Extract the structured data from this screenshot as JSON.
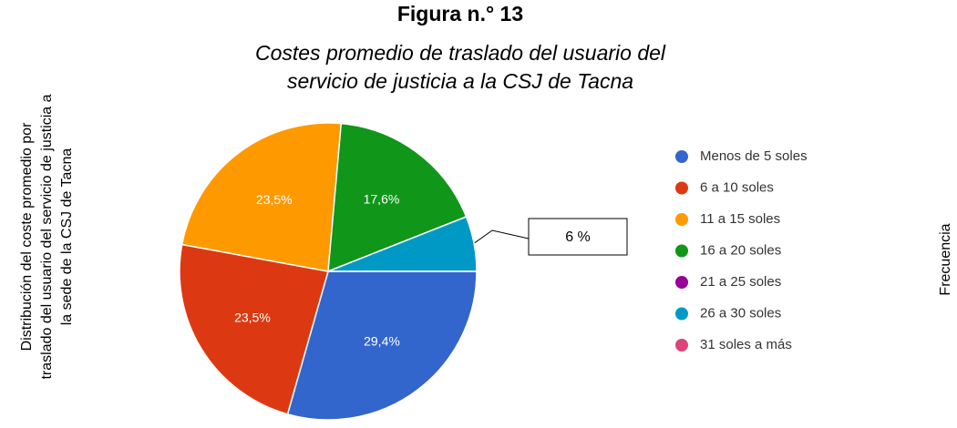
{
  "chart_data": {
    "type": "pie",
    "title": "Figura n.° 13",
    "subtitle": [
      "Costes promedio de traslado del usuario del",
      "servicio de justicia a la CSJ de Tacna"
    ],
    "y_label": [
      "Distribución del coste promedio por",
      "traslado del usuario del servicio de justicia a",
      "la sede de la CSJ de Tacna"
    ],
    "y2_label": "Frecuencia",
    "categories": [
      "Menos de 5 soles",
      "6 a 10 soles",
      "11 a 15 soles",
      "16 a 20 soles",
      "21 a 25 soles",
      "26 a 30 soles",
      "31 soles a más"
    ],
    "values": [
      29.4,
      23.5,
      23.5,
      17.6,
      0,
      6,
      0
    ],
    "value_labels": [
      "29,4%",
      "23,5%",
      "23,5%",
      "17,6%",
      null,
      "6 %",
      null
    ],
    "colors": [
      "#3366cc",
      "#dc3912",
      "#ff9900",
      "#109618",
      "#990099",
      "#0099c6",
      "#dd4477"
    ],
    "legend": "right"
  }
}
